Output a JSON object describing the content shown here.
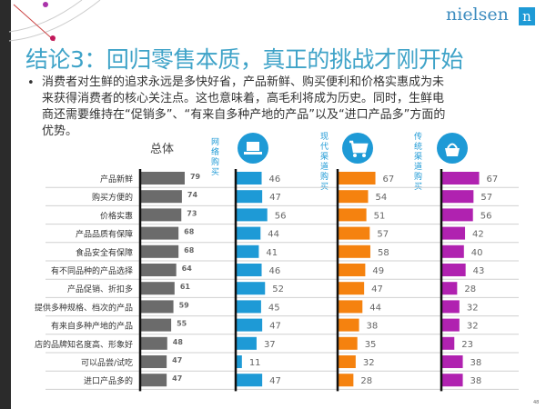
{
  "header": {
    "logo": "nielsen",
    "logo_mark": "n"
  },
  "title": "结论3：回归零售本质，真正的挑战才刚开始",
  "body": "消费者对生鲜的追求永远是多快好省，产品新鲜、购买便利和价格实惠成为未来获得消费者的核心关注点。这也意味着，高毛利将成为历史。同时，生鲜电商还需要维持在“促销多”、“有来自多种产地的产品”以及“进口产品多”方面的优势。",
  "page_number": "48",
  "icons": {
    "online": "laptop-icon",
    "modern": "cart-icon",
    "traditional": "basket-icon"
  },
  "chart_data": {
    "type": "bar",
    "orientation": "horizontal",
    "categories": [
      "产品新鲜",
      "购买方便的",
      "价格实惠",
      "产品品质有保障",
      "食品安全有保障",
      "有不同品种的产品选择",
      "产品促销、折扣多",
      "提供多种规格、档次的产品",
      "有来自多种产地的产品",
      "店的品牌知名度高、形象好",
      "可以品尝/试吃",
      "进口产品多的"
    ],
    "series": [
      {
        "name": "总体",
        "color": "#6b6b6b",
        "values": [
          79,
          74,
          73,
          68,
          68,
          64,
          61,
          59,
          55,
          48,
          47,
          47
        ]
      },
      {
        "name": "网络购买",
        "color": "#1e9ad6",
        "values": [
          46,
          47,
          56,
          44,
          41,
          46,
          52,
          45,
          47,
          37,
          11,
          47
        ]
      },
      {
        "name": "现代渠道购买",
        "color": "#f5820f",
        "values": [
          67,
          54,
          51,
          57,
          58,
          49,
          47,
          44,
          38,
          35,
          32,
          28
        ]
      },
      {
        "name": "传统渠道购买",
        "color": "#b022b0",
        "values": [
          67,
          57,
          56,
          42,
          40,
          43,
          28,
          32,
          32,
          23,
          38,
          38
        ]
      }
    ],
    "xlim": [
      0,
      100
    ],
    "grid": true,
    "legend": "top"
  }
}
